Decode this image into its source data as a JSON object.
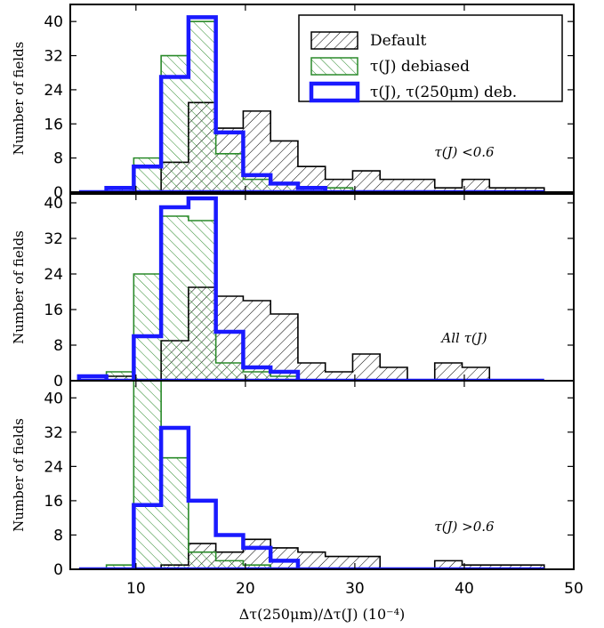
{
  "chart_data": [
    {
      "type": "histogram",
      "annotation": "τ(J) <0.6",
      "ylabel": "Number of fields",
      "xlabel": "",
      "xlim": [
        4,
        50
      ],
      "ylim": [
        0,
        44
      ],
      "yticks": [
        0,
        8,
        16,
        24,
        32,
        40
      ],
      "xticks": [],
      "legend": {
        "placement": "top-right",
        "entries": [
          "Default",
          "τ(J) debiased",
          "τ(J), τ(250μm) deb."
        ]
      },
      "bin_edges": [
        4.8,
        7.3,
        9.8,
        12.3,
        14.8,
        17.3,
        19.8,
        22.3,
        24.8,
        27.3,
        29.8,
        32.3,
        34.8,
        37.3,
        39.8,
        42.3,
        44.8,
        47.3
      ],
      "series": [
        {
          "name": "Default",
          "style": "black-hatch",
          "values": [
            0,
            1,
            0,
            7,
            21,
            15,
            19,
            12,
            6,
            3,
            5,
            3,
            3,
            1,
            3,
            1,
            1
          ]
        },
        {
          "name": "τ(J) debiased",
          "style": "green-hatch",
          "values": [
            0,
            1,
            8,
            32,
            40,
            9,
            3,
            2,
            1,
            1,
            0,
            0,
            0,
            0,
            0,
            0,
            0
          ]
        },
        {
          "name": "τ(J), τ(250μm) deb.",
          "style": "blue-step",
          "values": [
            0,
            1,
            6,
            27,
            41,
            14,
            4,
            2,
            1,
            0,
            0,
            0,
            0,
            0,
            0,
            0,
            0
          ]
        }
      ]
    },
    {
      "type": "histogram",
      "annotation": "All τ(J)",
      "ylabel": "Number of fields",
      "xlabel": "",
      "xlim": [
        4,
        50
      ],
      "ylim": [
        0,
        42
      ],
      "yticks": [
        0,
        8,
        16,
        24,
        32,
        40
      ],
      "xticks": [],
      "bin_edges": [
        4.8,
        7.3,
        9.8,
        12.3,
        14.8,
        17.3,
        19.8,
        22.3,
        24.8,
        27.3,
        29.8,
        32.3,
        34.8,
        37.3,
        39.8,
        42.3,
        44.8,
        47.3
      ],
      "series": [
        {
          "name": "Default",
          "style": "black-hatch",
          "values": [
            0,
            1,
            0,
            9,
            21,
            19,
            18,
            15,
            4,
            2,
            6,
            3,
            0,
            4,
            3,
            0,
            0
          ]
        },
        {
          "name": "τ(J) debiased",
          "style": "green-hatch",
          "values": [
            0,
            2,
            24,
            37,
            36,
            4,
            2,
            1,
            0,
            0,
            0,
            0,
            0,
            0,
            0,
            0,
            0
          ]
        },
        {
          "name": "τ(J), τ(250μm) deb.",
          "style": "blue-step",
          "values": [
            1,
            0,
            10,
            39,
            41,
            11,
            3,
            2,
            0,
            0,
            0,
            0,
            0,
            0,
            0,
            0,
            0
          ]
        }
      ]
    },
    {
      "type": "histogram",
      "annotation": "τ(J) >0.6",
      "ylabel": "Number of fields",
      "xlabel": "Δτ(250μm)/Δτ(J) (10⁻⁴)",
      "xlim": [
        4,
        50
      ],
      "ylim": [
        0,
        44
      ],
      "yticks": [
        0,
        8,
        16,
        24,
        32,
        40
      ],
      "xticks": [
        10,
        20,
        30,
        40,
        50
      ],
      "bin_edges": [
        4.8,
        7.3,
        9.8,
        12.3,
        14.8,
        17.3,
        19.8,
        22.3,
        24.8,
        27.3,
        29.8,
        32.3,
        34.8,
        37.3,
        39.8,
        42.3,
        44.8,
        47.3
      ],
      "series": [
        {
          "name": "Default",
          "style": "black-hatch",
          "values": [
            0,
            0,
            0,
            1,
            6,
            4,
            7,
            5,
            4,
            3,
            3,
            0,
            0,
            2,
            1,
            1,
            1
          ]
        },
        {
          "name": "τ(J) debiased",
          "style": "green-hatch",
          "values": [
            0,
            1,
            44,
            26,
            4,
            2,
            1,
            0,
            0,
            0,
            0,
            0,
            0,
            0,
            0,
            0,
            0
          ]
        },
        {
          "name": "τ(J), τ(250μm) deb.",
          "style": "blue-step",
          "values": [
            0,
            0,
            15,
            33,
            16,
            8,
            5,
            2,
            0,
            0,
            0,
            0,
            0,
            0,
            0,
            0,
            0
          ]
        }
      ]
    }
  ],
  "colors": {
    "default": "#000000",
    "debiased": "#2a8a2a",
    "deb250": "#1a1aff"
  }
}
